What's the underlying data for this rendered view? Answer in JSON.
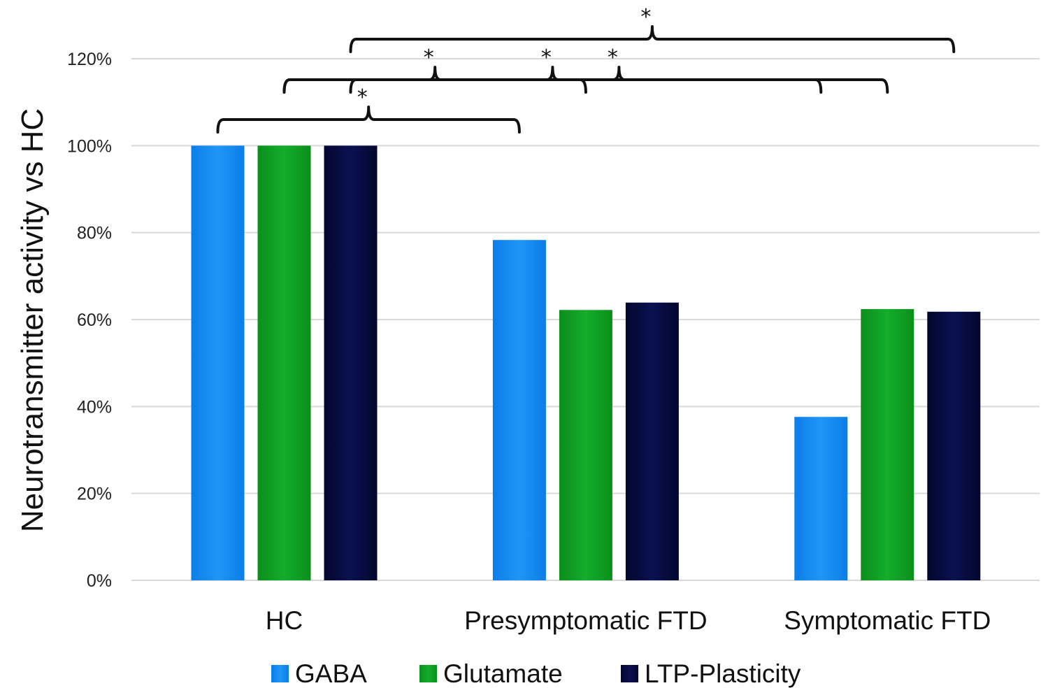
{
  "chart_data": {
    "type": "bar",
    "ylabel": "Neurotransmitter activity vs HC",
    "xlabel": "",
    "categories": [
      "HC",
      "Presymptomatic FTD",
      "Symptomatic FTD"
    ],
    "series": [
      {
        "name": "GABA",
        "values": [
          100,
          78.3,
          37.6
        ],
        "color": "#1a8cf0"
      },
      {
        "name": "Glutamate",
        "values": [
          100,
          62.2,
          62.4
        ],
        "color": "#10a024"
      },
      {
        "name": "LTP-Plasticity",
        "values": [
          100,
          63.9,
          61.8
        ],
        "color": "#050a40"
      }
    ],
    "ylim": [
      0,
      120
    ],
    "yticks": [
      "0%",
      "20%",
      "40%",
      "60%",
      "80%",
      "100%",
      "120%"
    ],
    "ytick_values": [
      0,
      20,
      40,
      60,
      80,
      100,
      120
    ],
    "grid": true,
    "legend_position": "bottom",
    "significance": [
      {
        "from": {
          "cat": 0,
          "series": 0
        },
        "to": {
          "cat": 1,
          "series": 0
        },
        "label": "*"
      },
      {
        "from": {
          "cat": 0,
          "series": 1
        },
        "to": {
          "cat": 2,
          "series": 0
        },
        "label": "*"
      },
      {
        "from": {
          "cat": 0,
          "series": 1
        },
        "to": {
          "cat": 1,
          "series": 1
        },
        "label": "*"
      },
      {
        "from": {
          "cat": 0,
          "series": 2
        },
        "to": {
          "cat": 2,
          "series": 1
        },
        "label": "*"
      },
      {
        "from": {
          "cat": 0,
          "series": 2
        },
        "to": {
          "cat": 2,
          "series": 2
        },
        "label": "*"
      }
    ]
  }
}
